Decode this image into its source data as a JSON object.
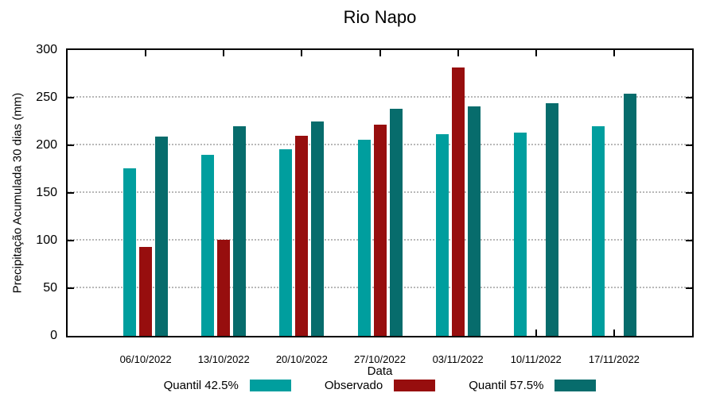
{
  "title": "Rio Napo",
  "chart_data": {
    "type": "bar",
    "title": "Rio Napo",
    "xlabel": "Data",
    "ylabel": "Precipitação Acumulada 30 dias (mm)",
    "ylim": [
      0,
      300
    ],
    "yticks": [
      0,
      50,
      100,
      150,
      200,
      250,
      300
    ],
    "grid": "horizontal-dotted",
    "legend_position": "bottom",
    "categories": [
      "06/10/2022",
      "13/10/2022",
      "20/10/2022",
      "27/10/2022",
      "03/11/2022",
      "10/11/2022",
      "17/11/2022"
    ],
    "series": [
      {
        "name": "Quantil 42.5%",
        "color": "#009E9E",
        "values": [
          176,
          190,
          196,
          206,
          212,
          213,
          220
        ]
      },
      {
        "name": "Observado",
        "color": "#970E0E",
        "values": [
          93,
          101,
          210,
          222,
          282,
          null,
          null
        ]
      },
      {
        "name": "Quantil 57.5%",
        "color": "#076C6C",
        "values": [
          209,
          220,
          225,
          238,
          241,
          244,
          254
        ]
      }
    ],
    "colors": {
      "quantil_425": "#009E9E",
      "observado": "#970E0E",
      "quantil_575": "#076C6C",
      "grid": "#b8b8b8",
      "axis": "#000000"
    }
  }
}
